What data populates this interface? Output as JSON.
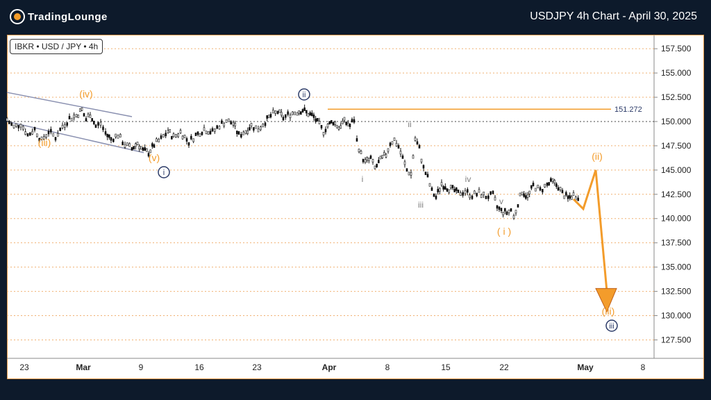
{
  "header": {
    "brand": "TradingLounge",
    "title": "USDJPY 4h Chart - April 30, 2025"
  },
  "symbol_label": "IBKR • USD / JPY • 4h",
  "colors": {
    "orange": "#f39c2b",
    "navy": "#2b3a67",
    "gray": "#7f7f7f",
    "background": "#0d1a2b"
  },
  "chart_data": {
    "type": "candlestick",
    "title": "USDJPY 4h Chart - April 30, 2025",
    "ylim": [
      125.6,
      158.8
    ],
    "y_ticks": [
      "157.500",
      "155.000",
      "152.500",
      "150.000",
      "147.500",
      "145.000",
      "142.500",
      "140.000",
      "137.500",
      "135.000",
      "132.500",
      "130.000",
      "127.500"
    ],
    "x_ticks": [
      "23",
      "Mar",
      "9",
      "16",
      "23",
      "Apr",
      "8",
      "15",
      "22",
      "May",
      "8"
    ],
    "resistance": {
      "value": 151.272,
      "label": "151.272"
    },
    "wave_labels": [
      {
        "text": "(iv)",
        "color": "orange"
      },
      {
        "text": "(iii)",
        "color": "orange"
      },
      {
        "text": "(v)",
        "color": "orange"
      },
      {
        "text": "i",
        "color": "navy-circle"
      },
      {
        "text": "ii",
        "color": "navy-circle"
      },
      {
        "text": "i",
        "color": "gray"
      },
      {
        "text": "ii",
        "color": "gray"
      },
      {
        "text": "iii",
        "color": "gray"
      },
      {
        "text": "iv",
        "color": "gray"
      },
      {
        "text": "v",
        "color": "gray"
      },
      {
        "text": "( i )",
        "color": "orange"
      },
      {
        "text": "(ii)",
        "color": "orange"
      },
      {
        "text": "(iii)",
        "color": "orange"
      },
      {
        "text": "iii",
        "color": "navy-circle"
      }
    ],
    "price_path": [
      {
        "t": 0,
        "v": 150.2
      },
      {
        "t": 10,
        "v": 149.4
      },
      {
        "t": 20,
        "v": 149.8
      },
      {
        "t": 30,
        "v": 148.6
      },
      {
        "t": 40,
        "v": 149.2
      },
      {
        "t": 50,
        "v": 148.0
      },
      {
        "t": 60,
        "v": 149.0
      },
      {
        "t": 70,
        "v": 148.4
      },
      {
        "t": 80,
        "v": 149.5
      },
      {
        "t": 90,
        "v": 150.3
      },
      {
        "t": 100,
        "v": 150.6
      },
      {
        "t": 108,
        "v": 151.2
      },
      {
        "t": 114,
        "v": 150.2
      },
      {
        "t": 120,
        "v": 150.8
      },
      {
        "t": 128,
        "v": 149.5
      },
      {
        "t": 135,
        "v": 149.8
      },
      {
        "t": 142,
        "v": 148.8
      },
      {
        "t": 150,
        "v": 148.2
      },
      {
        "t": 160,
        "v": 148.6
      },
      {
        "t": 170,
        "v": 147.6
      },
      {
        "t": 180,
        "v": 147.2
      },
      {
        "t": 188,
        "v": 147.8
      },
      {
        "t": 196,
        "v": 147.0
      },
      {
        "t": 204,
        "v": 146.8
      },
      {
        "t": 212,
        "v": 147.6
      },
      {
        "t": 222,
        "v": 148.2
      },
      {
        "t": 232,
        "v": 149.0
      },
      {
        "t": 240,
        "v": 148.4
      },
      {
        "t": 250,
        "v": 148.9
      },
      {
        "t": 262,
        "v": 147.9
      },
      {
        "t": 272,
        "v": 148.6
      },
      {
        "t": 284,
        "v": 149.2
      },
      {
        "t": 296,
        "v": 148.9
      },
      {
        "t": 306,
        "v": 149.6
      },
      {
        "t": 316,
        "v": 150.1
      },
      {
        "t": 326,
        "v": 149.8
      },
      {
        "t": 334,
        "v": 148.6
      },
      {
        "t": 344,
        "v": 149.0
      },
      {
        "t": 352,
        "v": 149.6
      },
      {
        "t": 362,
        "v": 149.2
      },
      {
        "t": 372,
        "v": 150.0
      },
      {
        "t": 380,
        "v": 150.6
      },
      {
        "t": 390,
        "v": 151.0
      },
      {
        "t": 398,
        "v": 150.4
      },
      {
        "t": 408,
        "v": 150.8
      },
      {
        "t": 418,
        "v": 151.0
      },
      {
        "t": 426,
        "v": 151.2
      },
      {
        "t": 434,
        "v": 150.8
      },
      {
        "t": 442,
        "v": 150.5
      },
      {
        "t": 450,
        "v": 149.6
      },
      {
        "t": 456,
        "v": 149.0
      },
      {
        "t": 462,
        "v": 149.6
      },
      {
        "t": 470,
        "v": 150.0
      },
      {
        "t": 478,
        "v": 149.4
      },
      {
        "t": 486,
        "v": 150.0
      },
      {
        "t": 494,
        "v": 149.6
      },
      {
        "t": 500,
        "v": 150.2
      },
      {
        "t": 504,
        "v": 148.0
      },
      {
        "t": 510,
        "v": 146.6
      },
      {
        "t": 516,
        "v": 145.8
      },
      {
        "t": 524,
        "v": 146.2
      },
      {
        "t": 530,
        "v": 145.2
      },
      {
        "t": 538,
        "v": 146.0
      },
      {
        "t": 546,
        "v": 146.6
      },
      {
        "t": 552,
        "v": 147.8
      },
      {
        "t": 558,
        "v": 148.1
      },
      {
        "t": 564,
        "v": 147.4
      },
      {
        "t": 570,
        "v": 146.2
      },
      {
        "t": 576,
        "v": 145.0
      },
      {
        "t": 582,
        "v": 144.6
      },
      {
        "t": 588,
        "v": 148.2
      },
      {
        "t": 594,
        "v": 147.2
      },
      {
        "t": 600,
        "v": 145.2
      },
      {
        "t": 606,
        "v": 144.2
      },
      {
        "t": 612,
        "v": 142.8
      },
      {
        "t": 618,
        "v": 142.2
      },
      {
        "t": 626,
        "v": 143.6
      },
      {
        "t": 634,
        "v": 143.2
      },
      {
        "t": 642,
        "v": 143.0
      },
      {
        "t": 650,
        "v": 142.6
      },
      {
        "t": 660,
        "v": 142.8
      },
      {
        "t": 670,
        "v": 142.4
      },
      {
        "t": 680,
        "v": 142.6
      },
      {
        "t": 690,
        "v": 142.3
      },
      {
        "t": 700,
        "v": 142.4
      },
      {
        "t": 706,
        "v": 141.2
      },
      {
        "t": 712,
        "v": 140.8
      },
      {
        "t": 720,
        "v": 140.6
      },
      {
        "t": 726,
        "v": 140.9
      },
      {
        "t": 730,
        "v": 140.1
      },
      {
        "t": 736,
        "v": 141.6
      },
      {
        "t": 742,
        "v": 142.8
      },
      {
        "t": 750,
        "v": 142.2
      },
      {
        "t": 758,
        "v": 143.4
      },
      {
        "t": 768,
        "v": 142.9
      },
      {
        "t": 778,
        "v": 143.5
      },
      {
        "t": 786,
        "v": 143.8
      },
      {
        "t": 794,
        "v": 143.3
      },
      {
        "t": 800,
        "v": 142.6
      },
      {
        "t": 808,
        "v": 142.1
      },
      {
        "t": 816,
        "v": 142.4
      },
      {
        "t": 826,
        "v": 142.2
      }
    ]
  }
}
